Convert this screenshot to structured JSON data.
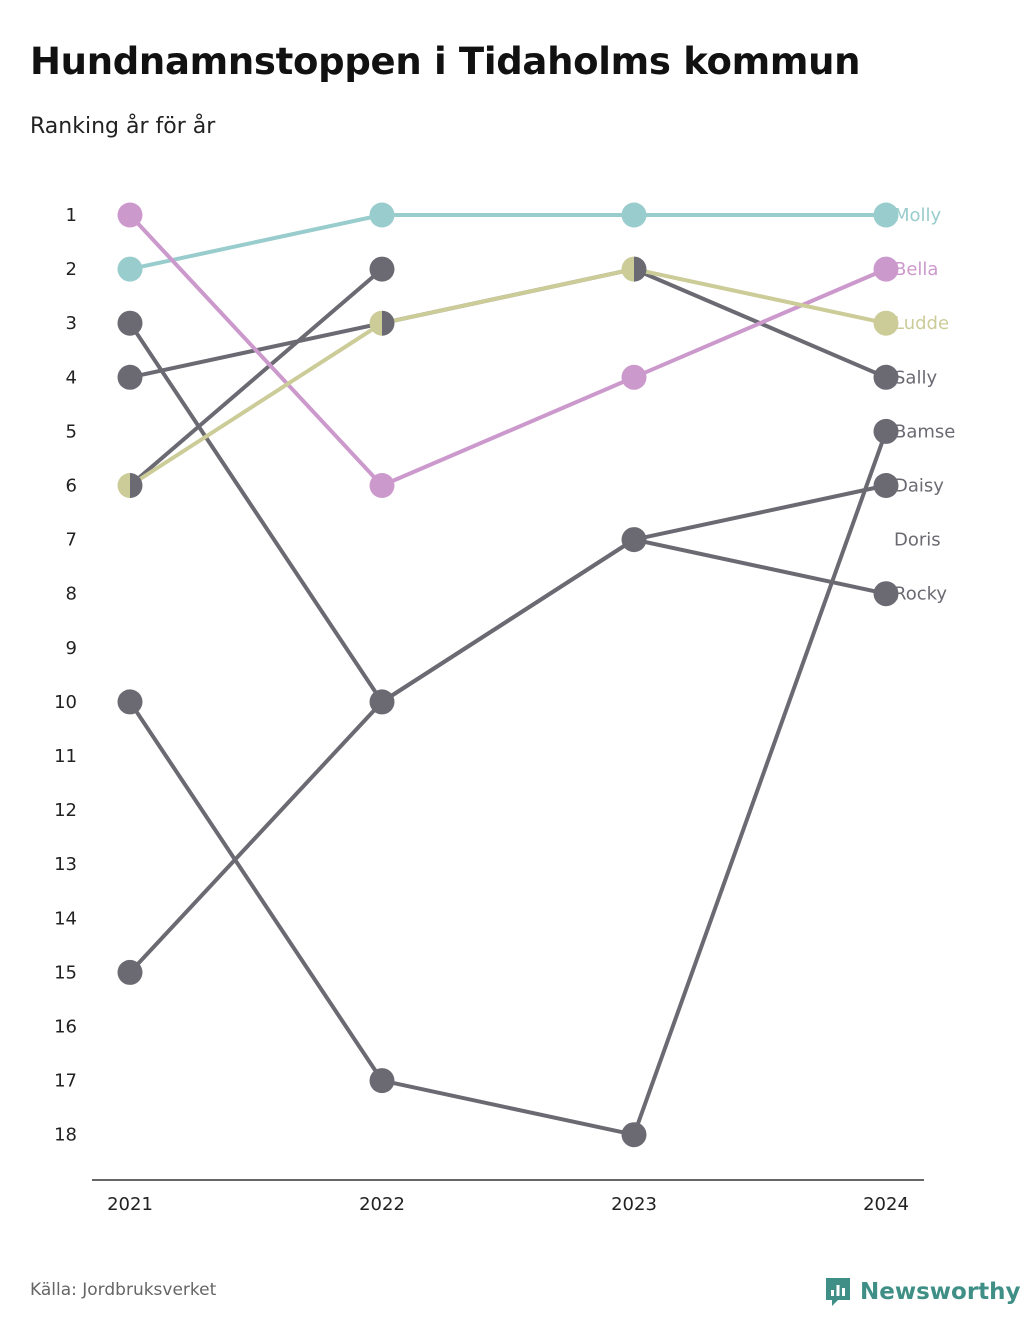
{
  "title": "Hundnamnstoppen i Tidaholms kommun",
  "subtitle": "Ranking år för år",
  "source": "Källa: Jordbruksverket",
  "brand": "Newsworthy",
  "colors": {
    "molly": "#99cccc",
    "bella": "#cc99cc",
    "ludde": "#cccc99",
    "other": "#6b6a72",
    "brand": "#3f8f87"
  },
  "chart_data": {
    "type": "line",
    "x": [
      "2021",
      "2022",
      "2023",
      "2024"
    ],
    "y_ticks": [
      1,
      2,
      3,
      4,
      5,
      6,
      7,
      8,
      9,
      10,
      11,
      12,
      13,
      14,
      15,
      16,
      17,
      18
    ],
    "ylim": [
      1,
      18
    ],
    "y_inverted": true,
    "series": [
      {
        "name": "Molly",
        "color_key": "molly",
        "values": [
          2,
          1,
          1,
          1
        ]
      },
      {
        "name": "Bella",
        "color_key": "bella",
        "values": [
          1,
          6,
          4,
          2
        ]
      },
      {
        "name": "Ludde",
        "color_key": "ludde",
        "values": [
          6,
          3,
          2,
          3
        ]
      },
      {
        "name": "Sally",
        "color_key": "other",
        "values": [
          4,
          3,
          2,
          4
        ]
      },
      {
        "name": "Bamse",
        "color_key": "other",
        "values": [
          10,
          17,
          18,
          5
        ]
      },
      {
        "name": "Daisy",
        "color_key": "other",
        "values": [
          15,
          10,
          7,
          6
        ]
      },
      {
        "name": "Doris",
        "color_key": "other",
        "values": [
          6,
          2,
          null,
          null
        ]
      },
      {
        "name": "Rocky",
        "color_key": "other",
        "values": [
          3,
          10,
          7,
          8
        ]
      }
    ]
  }
}
